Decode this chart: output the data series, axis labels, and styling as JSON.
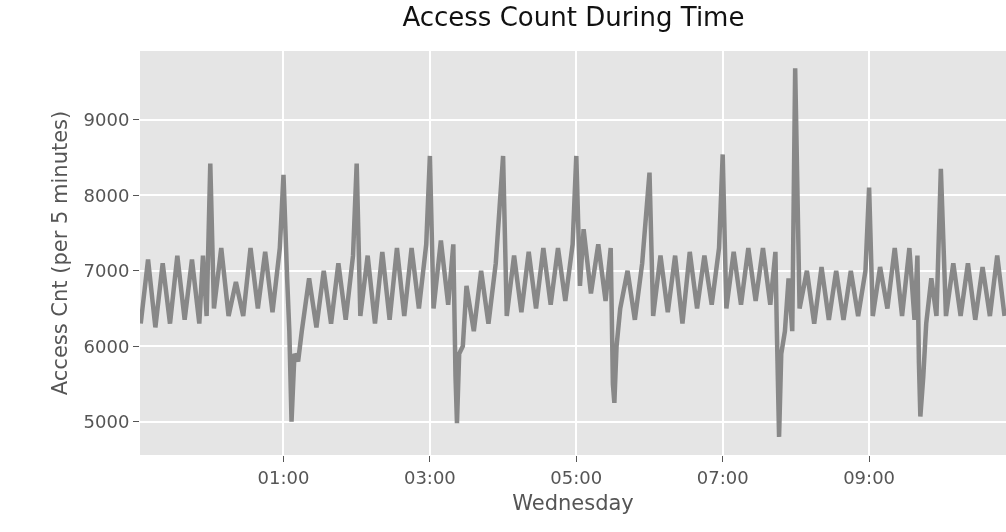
{
  "chart_data": {
    "type": "line",
    "title": "Access Count During Time",
    "xlabel": "Wednesday",
    "ylabel": "Access Cnt (per 5 minutes)",
    "x": [
      -0.95,
      -0.85,
      -0.75,
      -0.65,
      -0.55,
      -0.45,
      -0.35,
      -0.25,
      -0.15,
      -0.1,
      -0.05,
      0.0,
      0.05,
      0.15,
      0.25,
      0.35,
      0.45,
      0.55,
      0.65,
      0.75,
      0.85,
      0.95,
      1.0,
      1.05,
      1.08,
      1.11,
      1.15,
      1.2,
      1.25,
      1.35,
      1.45,
      1.55,
      1.65,
      1.75,
      1.85,
      1.95,
      2.0,
      2.05,
      2.15,
      2.25,
      2.35,
      2.45,
      2.55,
      2.65,
      2.75,
      2.85,
      2.95,
      3.0,
      3.05,
      3.15,
      3.25,
      3.32,
      3.35,
      3.37,
      3.4,
      3.45,
      3.5,
      3.6,
      3.7,
      3.8,
      3.9,
      4.0,
      4.05,
      4.15,
      4.25,
      4.35,
      4.45,
      4.55,
      4.65,
      4.75,
      4.85,
      4.95,
      5.0,
      5.05,
      5.1,
      5.2,
      5.3,
      5.4,
      5.47,
      5.5,
      5.52,
      5.55,
      5.6,
      5.7,
      5.8,
      5.9,
      6.0,
      6.05,
      6.15,
      6.25,
      6.35,
      6.45,
      6.55,
      6.65,
      6.75,
      6.85,
      6.95,
      7.0,
      7.05,
      7.15,
      7.25,
      7.35,
      7.45,
      7.55,
      7.65,
      7.72,
      7.74,
      7.77,
      7.8,
      7.85,
      7.9,
      7.95,
      7.99,
      8.05,
      8.15,
      8.25,
      8.35,
      8.45,
      8.55,
      8.65,
      8.75,
      8.85,
      8.95,
      9.0,
      9.05,
      9.15,
      9.25,
      9.35,
      9.45,
      9.55,
      9.62,
      9.66,
      9.68,
      9.7,
      9.74,
      9.78,
      9.85,
      9.92,
      9.98,
      10.05,
      10.15,
      10.25,
      10.35,
      10.45,
      10.55,
      10.65,
      10.75,
      10.85
    ],
    "series": [
      {
        "color": "#888888",
        "values": [
          6300,
          7150,
          6250,
          7100,
          6300,
          7200,
          6350,
          7150,
          6300,
          7200,
          6400,
          8420,
          6500,
          7300,
          6400,
          6850,
          6400,
          7300,
          6500,
          7250,
          6450,
          7300,
          8270,
          6900,
          6200,
          5000,
          5900,
          5800,
          6200,
          6900,
          6250,
          7000,
          6300,
          7100,
          6350,
          7200,
          8420,
          6400,
          7200,
          6300,
          7250,
          6350,
          7300,
          6400,
          7300,
          6500,
          7350,
          8520,
          6500,
          7400,
          6550,
          7350,
          5600,
          4980,
          5900,
          6000,
          6800,
          6200,
          7000,
          6300,
          7100,
          8520,
          6400,
          7200,
          6450,
          7250,
          6500,
          7300,
          6550,
          7300,
          6600,
          7350,
          8520,
          6800,
          7550,
          6700,
          7350,
          6600,
          7300,
          5500,
          5250,
          6000,
          6500,
          7000,
          6350,
          7100,
          8300,
          6400,
          7200,
          6450,
          7200,
          6300,
          7250,
          6500,
          7200,
          6550,
          7300,
          8540,
          6500,
          7250,
          6550,
          7300,
          6600,
          7300,
          6550,
          7250,
          6200,
          4800,
          5900,
          6200,
          6900,
          6200,
          9680,
          6500,
          7000,
          6300,
          7050,
          6350,
          7000,
          6350,
          7000,
          6400,
          7000,
          8100,
          6400,
          7050,
          6500,
          7300,
          6400,
          7300,
          6350,
          7200,
          5800,
          5070,
          5600,
          6300,
          6900,
          6400,
          8350,
          6400,
          7100,
          6400,
          7100,
          6350,
          7050,
          6400,
          7200,
          6400
        ]
      }
    ],
    "xlim": [
      -0.96,
      10.87
    ],
    "ylim": [
      4560,
      9910
    ],
    "xticks": [
      {
        "value": 1,
        "label": "01:00"
      },
      {
        "value": 3,
        "label": "03:00"
      },
      {
        "value": 5,
        "label": "05:00"
      },
      {
        "value": 7,
        "label": "07:00"
      },
      {
        "value": 9,
        "label": "09:00"
      }
    ],
    "yticks": [
      5000,
      6000,
      7000,
      8000,
      9000
    ],
    "grid": true,
    "marker": "none",
    "line_style": "solid"
  }
}
